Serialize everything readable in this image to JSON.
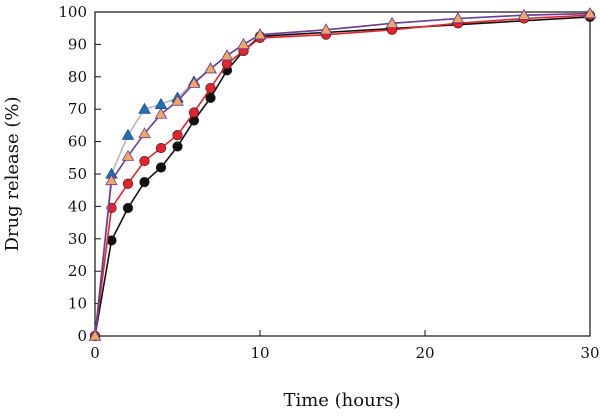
{
  "chart_data": {
    "type": "line",
    "xlabel": "Time (hours)",
    "ylabel": "Drug release (%)",
    "xlim": [
      0,
      30
    ],
    "ylim": [
      0,
      100
    ],
    "xticks": [
      0,
      10,
      20,
      30
    ],
    "yticks": [
      0,
      10,
      20,
      30,
      40,
      50,
      60,
      70,
      80,
      90,
      100
    ],
    "grid": false,
    "legend": "none",
    "series": [
      {
        "marker": "circle",
        "marker_color": "#111111",
        "line_color": "#111111",
        "points": [
          [
            0,
            0
          ],
          [
            1,
            29.5
          ],
          [
            2,
            39.5
          ],
          [
            3,
            47.5
          ],
          [
            4,
            52
          ],
          [
            5,
            58.5
          ],
          [
            6,
            66.5
          ],
          [
            7,
            73.5
          ],
          [
            8,
            82
          ],
          [
            9,
            88
          ],
          [
            10,
            92.5
          ],
          [
            30,
            98.5
          ]
        ]
      },
      {
        "marker": "circle",
        "marker_color": "#e8212a",
        "line_color": "#e8212a",
        "points": [
          [
            0,
            0
          ],
          [
            1,
            39.5
          ],
          [
            2,
            47
          ],
          [
            3,
            54
          ],
          [
            4,
            58
          ],
          [
            5,
            62
          ],
          [
            6,
            69
          ],
          [
            7,
            76.5
          ],
          [
            8,
            84
          ],
          [
            9,
            88
          ],
          [
            10,
            92
          ],
          [
            14,
            93
          ],
          [
            18,
            94.5
          ],
          [
            22,
            96.5
          ],
          [
            26,
            98
          ],
          [
            30,
            99
          ]
        ]
      },
      {
        "marker": "triangle",
        "marker_color": "#1f6fb9",
        "line_color": "#b7b7b7",
        "points": [
          [
            0,
            0
          ],
          [
            1,
            50
          ],
          [
            2,
            62
          ],
          [
            3,
            70
          ],
          [
            4,
            71.5
          ],
          [
            5,
            73.5
          ],
          [
            6,
            78.5
          ],
          [
            7,
            82.5
          ],
          [
            8,
            86.5
          ],
          [
            9,
            90
          ],
          [
            10,
            93
          ],
          [
            14,
            94.5
          ],
          [
            18,
            96.5
          ],
          [
            22,
            98
          ],
          [
            26,
            99
          ],
          [
            30,
            99.5
          ]
        ]
      },
      {
        "marker": "triangle",
        "marker_color": "#f0a860",
        "line_color": "#6a3d9a",
        "points": [
          [
            0,
            0
          ],
          [
            1,
            48
          ],
          [
            2,
            55.5
          ],
          [
            3,
            62.5
          ],
          [
            4,
            68.5
          ],
          [
            5,
            72.5
          ],
          [
            6,
            78
          ],
          [
            7,
            82.5
          ],
          [
            8,
            86.5
          ],
          [
            9,
            90
          ],
          [
            10,
            93
          ],
          [
            14,
            94.5
          ],
          [
            18,
            96.5
          ],
          [
            22,
            98
          ],
          [
            26,
            99
          ],
          [
            30,
            99.5
          ]
        ]
      }
    ]
  }
}
